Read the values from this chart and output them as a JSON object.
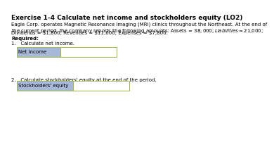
{
  "title": "Exercise 1-4 Calculate net income and stockholders equity (LO2)",
  "title_fontsize": 6.5,
  "body_text_line1": "Eagle Corp. operates Magnetic Resonance Imaging (MRI) clinics throughout the Northeast. At the end of",
  "body_text_line2": "the current period, the company reports the following amounts: Assets = $38,000; Liabilities = $21,000;",
  "body_text_line3": "Dividends = $1,800; Revenues = $11,600; Expenses = $7,800.",
  "body_fontsize": 5.0,
  "required_label": "Required:",
  "req1_label": "1.   Calculate net income.",
  "req2_label": "2.   Calculate stockholders' equity at the end of the period.",
  "box1_label": "Net income",
  "box2_label": "Stockholders' equity",
  "label_bg_color": "#a8b8d8",
  "input_bg_color": "#ffffff",
  "box_border_color": "#9ab84a",
  "background_color": "#ffffff",
  "text_color": "#000000",
  "label_text_color": "#000000",
  "label_fontsize": 5.0
}
